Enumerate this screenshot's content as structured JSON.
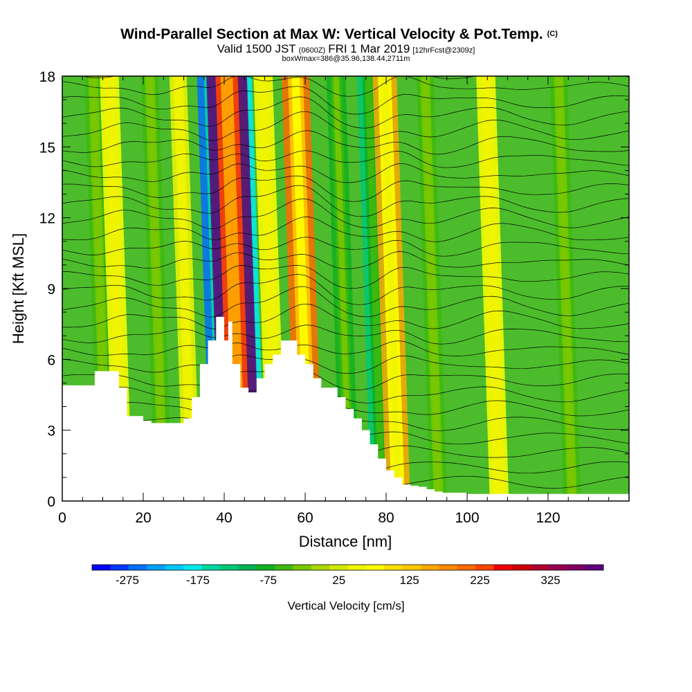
{
  "title": {
    "main": "Wind-Parallel Section at Max W: Vertical Velocity & Pot.Temp.",
    "copyright": "(C)",
    "valid_prefix": "Valid 1500 JST",
    "valid_utc": "(0600Z)",
    "valid_date": "FRI 1 Mar 2019",
    "forecast": "[12hrFcst@2309z]",
    "boxinfo": "boxWmax=386@35.96,138.44,2711m"
  },
  "chart_data": {
    "type": "heatmap",
    "xlabel": "Distance [nm]",
    "ylabel": "Height [Kft MSL]",
    "xlim": [
      0,
      140
    ],
    "ylim": [
      0,
      18
    ],
    "x_ticks": [
      0,
      20,
      40,
      60,
      80,
      100,
      120
    ],
    "y_ticks": [
      0,
      3,
      6,
      9,
      12,
      15,
      18
    ],
    "grid": false,
    "colorbar": {
      "title": "Vertical Velocity [cm/s]",
      "tick_values": [
        -275,
        -175,
        -75,
        25,
        125,
        225,
        325
      ],
      "range": [
        -325,
        400
      ],
      "colors": [
        "#0000ff",
        "#0038ff",
        "#0070ff",
        "#00a0ff",
        "#00c8ff",
        "#00ecec",
        "#00d8a0",
        "#00c878",
        "#00b454",
        "#10b020",
        "#40b810",
        "#78c800",
        "#a8d800",
        "#d0e800",
        "#f0f400",
        "#ffff00",
        "#ffe000",
        "#ffc800",
        "#ffa800",
        "#ff8c00",
        "#ff6c00",
        "#ff4400",
        "#f00000",
        "#d00000",
        "#b00030",
        "#980050",
        "#800060",
        "#600080"
      ]
    },
    "terrain_kft": {
      "distance": [
        0,
        6,
        8,
        10,
        12,
        14,
        16,
        18,
        20,
        22,
        26,
        30,
        32,
        34,
        36,
        38,
        39,
        40,
        41,
        42,
        44,
        46,
        48,
        50,
        52,
        54,
        56,
        58,
        60,
        62,
        64,
        66,
        68,
        70,
        72,
        74,
        76,
        78,
        80,
        82,
        84,
        86,
        88,
        90,
        92,
        94,
        100,
        110,
        120,
        130,
        140
      ],
      "height": [
        4.9,
        4.9,
        5.5,
        5.5,
        5.5,
        4.8,
        3.6,
        3.6,
        3.4,
        3.3,
        3.3,
        3.5,
        4.4,
        5.8,
        6.8,
        7.8,
        7.8,
        6.8,
        7.6,
        5.8,
        4.8,
        4.6,
        5.2,
        5.8,
        6.2,
        6.8,
        6.8,
        6.2,
        5.8,
        5.2,
        4.8,
        4.8,
        4.4,
        3.9,
        3.5,
        3.0,
        2.4,
        1.8,
        1.3,
        1.0,
        0.7,
        0.65,
        0.6,
        0.5,
        0.4,
        0.35,
        0.3,
        0.3,
        0.3,
        0.3,
        0.3
      ]
    },
    "updraft_bands": [
      {
        "distance": 43,
        "velocity_cm_s": 386
      },
      {
        "distance": 60,
        "velocity_cm_s": 200
      },
      {
        "distance": 82,
        "velocity_cm_s": 150
      },
      {
        "distance": 14,
        "velocity_cm_s": 75
      },
      {
        "distance": 52,
        "velocity_cm_s": 75
      },
      {
        "distance": 107,
        "velocity_cm_s": 75
      },
      {
        "distance": 31,
        "velocity_cm_s": 50
      }
    ],
    "downdraft_bands": [
      {
        "distance": 39.5,
        "velocity_cm_s": -250
      },
      {
        "distance": 46,
        "velocity_cm_s": -175
      },
      {
        "distance": 78,
        "velocity_cm_s": -125
      },
      {
        "distance": 70,
        "velocity_cm_s": -75
      },
      {
        "distance": 10,
        "velocity_cm_s": -50
      },
      {
        "distance": 24,
        "velocity_cm_s": -50
      },
      {
        "distance": 92,
        "velocity_cm_s": -50
      },
      {
        "distance": 125,
        "velocity_cm_s": -50
      }
    ]
  }
}
